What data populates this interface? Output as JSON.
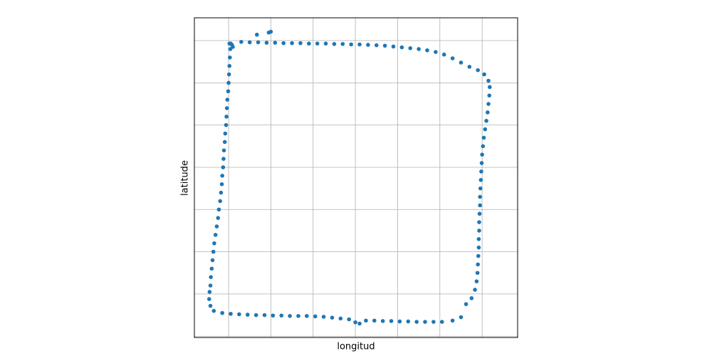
{
  "chart_data": {
    "type": "scatter",
    "xlabel": "longitud",
    "ylabel": "latitude",
    "color": "#1f77b4",
    "grid": true,
    "xlim": [
      0.19,
      7.84
    ],
    "ylim": [
      -0.03,
      7.54
    ],
    "xticks": [
      1,
      2,
      3,
      4,
      5,
      6,
      7
    ],
    "yticks": [
      0,
      1,
      2,
      3,
      4,
      5,
      6,
      7
    ],
    "x": [
      1.05,
      1.3,
      1.5,
      1.7,
      1.9,
      2.1,
      2.3,
      2.5,
      2.7,
      2.9,
      3.1,
      3.3,
      3.5,
      3.7,
      3.9,
      4.1,
      4.3,
      4.5,
      4.7,
      4.9,
      5.1,
      5.3,
      5.5,
      5.7,
      5.9,
      6.1,
      6.3,
      6.5,
      6.7,
      6.9,
      7.05,
      7.15,
      7.18,
      7.17,
      7.15,
      7.13,
      7.1,
      7.07,
      7.04,
      7.02,
      7.0,
      6.99,
      6.98,
      6.97,
      6.96,
      6.95,
      6.95,
      6.94,
      6.93,
      6.93,
      6.92,
      6.92,
      6.91,
      6.9,
      6.89,
      6.87,
      6.83,
      6.75,
      6.62,
      6.5,
      6.3,
      6.05,
      5.85,
      5.65,
      5.45,
      5.25,
      5.05,
      4.85,
      4.65,
      4.45,
      4.25,
      4.0,
      4.1,
      3.85,
      3.65,
      3.45,
      3.25,
      3.05,
      2.85,
      2.65,
      2.45,
      2.25,
      2.05,
      1.85,
      1.65,
      1.45,
      1.25,
      1.05,
      0.85,
      0.65,
      0.57,
      0.54,
      0.55,
      0.57,
      0.58,
      0.6,
      0.62,
      0.64,
      0.66,
      0.69,
      0.72,
      0.75,
      0.77,
      0.8,
      0.82,
      0.84,
      0.85,
      0.87,
      0.88,
      0.89,
      0.91,
      0.92,
      0.94,
      0.95,
      0.96,
      0.97,
      0.99,
      1.0,
      1.01,
      1.02,
      1.03,
      1.04,
      1.02,
      1.1,
      1.08,
      1.67,
      1.95,
      2.0
    ],
    "values": [
      6.93,
      6.97,
      6.96,
      6.96,
      6.95,
      6.95,
      6.94,
      6.94,
      6.94,
      6.93,
      6.93,
      6.93,
      6.92,
      6.92,
      6.91,
      6.91,
      6.9,
      6.89,
      6.88,
      6.86,
      6.84,
      6.82,
      6.8,
      6.77,
      6.73,
      6.67,
      6.58,
      6.48,
      6.38,
      6.3,
      6.2,
      6.05,
      5.9,
      5.7,
      5.5,
      5.3,
      5.1,
      4.9,
      4.7,
      4.5,
      4.3,
      4.1,
      3.9,
      3.7,
      3.5,
      3.3,
      3.1,
      2.9,
      2.7,
      2.5,
      2.3,
      2.1,
      1.9,
      1.7,
      1.5,
      1.3,
      1.1,
      0.9,
      0.76,
      0.45,
      0.37,
      0.34,
      0.34,
      0.34,
      0.34,
      0.35,
      0.35,
      0.36,
      0.36,
      0.37,
      0.37,
      0.33,
      0.3,
      0.4,
      0.42,
      0.44,
      0.46,
      0.47,
      0.48,
      0.48,
      0.48,
      0.49,
      0.49,
      0.5,
      0.5,
      0.51,
      0.52,
      0.53,
      0.55,
      0.6,
      0.72,
      0.88,
      1.05,
      1.2,
      1.4,
      1.6,
      1.8,
      2.0,
      2.2,
      2.4,
      2.6,
      2.8,
      3.0,
      3.2,
      3.4,
      3.6,
      3.8,
      4.0,
      4.2,
      4.4,
      4.6,
      4.8,
      5.0,
      5.2,
      5.4,
      5.6,
      5.8,
      6.0,
      6.2,
      6.4,
      6.6,
      6.8,
      6.93,
      6.85,
      6.9,
      7.14,
      7.19,
      7.21
    ]
  }
}
